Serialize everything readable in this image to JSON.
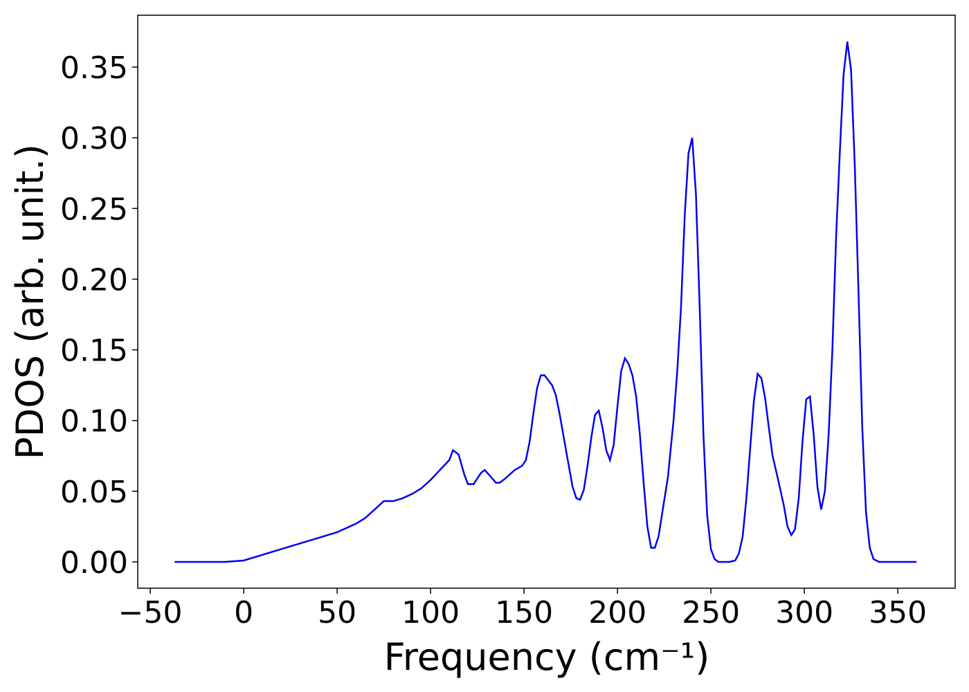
{
  "chart_data": {
    "type": "line",
    "xlabel": "Frequency (cm⁻¹)",
    "ylabel": "PDOS (arb. unit.)",
    "xlim": [
      -56.7,
      380.7
    ],
    "ylim": [
      -0.0186,
      0.3867
    ],
    "xticks": [
      {
        "value": -50,
        "label": "−50"
      },
      0,
      50,
      100,
      150,
      200,
      250,
      300,
      350
    ],
    "yticks": [
      {
        "value": 0,
        "label": "0.00"
      },
      {
        "value": 0.05,
        "label": "0.05"
      },
      {
        "value": 0.1,
        "label": "0.10"
      },
      {
        "value": 0.15,
        "label": "0.15"
      },
      {
        "value": 0.2,
        "label": "0.20"
      },
      {
        "value": 0.25,
        "label": "0.25"
      },
      {
        "value": 0.3,
        "label": "0.30"
      },
      {
        "value": 0.35,
        "label": "0.35"
      }
    ],
    "grid": false,
    "series": [
      {
        "color": "#0000ee",
        "x": [
          -37,
          -10,
          0,
          5,
          10,
          20,
          30,
          40,
          50,
          60,
          65,
          70,
          75,
          80,
          85,
          90,
          95,
          100,
          105,
          110,
          112,
          115,
          118,
          120,
          123,
          127,
          129,
          131,
          135,
          137,
          140,
          145,
          149,
          151,
          153,
          155,
          157,
          159,
          161,
          165,
          167,
          169,
          173,
          176,
          178,
          180,
          182,
          184,
          186,
          188,
          190,
          192,
          194,
          196,
          198,
          200,
          202,
          204,
          206,
          208,
          210,
          212,
          214,
          216,
          218,
          220,
          222,
          224,
          227,
          230,
          232,
          234,
          236,
          238,
          240,
          242,
          244,
          246,
          248,
          250,
          252,
          254,
          260,
          263,
          265,
          267,
          269,
          271,
          273,
          275,
          277,
          279,
          281,
          283,
          286,
          289,
          291,
          293,
          295,
          297,
          299,
          301,
          303,
          305,
          307,
          309,
          311,
          313,
          315,
          317,
          319,
          321,
          323,
          325,
          327,
          329,
          331,
          333,
          335,
          337,
          340,
          360
        ],
        "values": [
          0,
          0,
          0.001,
          0.003,
          0.005,
          0.009,
          0.013,
          0.017,
          0.021,
          0.027,
          0.031,
          0.037,
          0.043,
          0.043,
          0.045,
          0.048,
          0.052,
          0.058,
          0.065,
          0.072,
          0.079,
          0.076,
          0.062,
          0.055,
          0.055,
          0.063,
          0.065,
          0.062,
          0.056,
          0.056,
          0.059,
          0.065,
          0.068,
          0.072,
          0.085,
          0.105,
          0.123,
          0.132,
          0.132,
          0.125,
          0.118,
          0.105,
          0.075,
          0.053,
          0.045,
          0.044,
          0.051,
          0.068,
          0.088,
          0.104,
          0.107,
          0.095,
          0.079,
          0.072,
          0.083,
          0.11,
          0.135,
          0.144,
          0.14,
          0.132,
          0.117,
          0.09,
          0.056,
          0.025,
          0.01,
          0.01,
          0.018,
          0.035,
          0.06,
          0.1,
          0.135,
          0.18,
          0.245,
          0.289,
          0.3,
          0.26,
          0.18,
          0.09,
          0.033,
          0.009,
          0.002,
          0,
          0,
          0.001,
          0.006,
          0.018,
          0.045,
          0.08,
          0.114,
          0.133,
          0.13,
          0.116,
          0.095,
          0.075,
          0.058,
          0.04,
          0.025,
          0.019,
          0.023,
          0.045,
          0.085,
          0.115,
          0.117,
          0.09,
          0.053,
          0.037,
          0.05,
          0.09,
          0.15,
          0.23,
          0.29,
          0.345,
          0.368,
          0.348,
          0.28,
          0.19,
          0.095,
          0.035,
          0.01,
          0.002,
          0,
          0
        ]
      }
    ]
  }
}
